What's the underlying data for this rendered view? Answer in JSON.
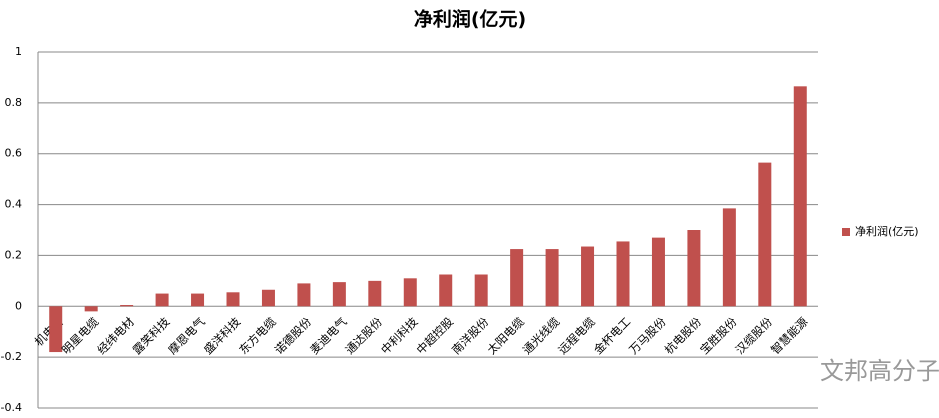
{
  "chart_data": {
    "type": "bar",
    "title": "净利润(亿元)",
    "categories": [
      "机电科",
      "明星电缆",
      "经纬电材",
      "露笑科技",
      "摩恩电气",
      "盛洋科技",
      "东方电缆",
      "诺德股份",
      "麦迪电气",
      "通达股份",
      "中利科技",
      "中超控股",
      "南洋股份",
      "太阳电缆",
      "通光线缆",
      "远程电缆",
      "金杯电工",
      "万马股份",
      "杭电股份",
      "宝胜股份",
      "汉缆股份",
      "智慧能源"
    ],
    "series": [
      {
        "name": "净利润(亿元)",
        "color": "#c0504d",
        "values": [
          -0.18,
          -0.02,
          0.005,
          0.05,
          0.05,
          0.055,
          0.065,
          0.09,
          0.095,
          0.1,
          0.11,
          0.125,
          0.125,
          0.225,
          0.225,
          0.235,
          0.255,
          0.27,
          0.3,
          0.385,
          0.565,
          0.865
        ]
      }
    ],
    "ylim": [
      -0.4,
      1
    ],
    "yticks": [
      -0.4,
      -0.2,
      0,
      0.2,
      0.4,
      0.6,
      0.8,
      1
    ],
    "grid": true,
    "legend": "right",
    "watermark": "文邦高分子"
  }
}
